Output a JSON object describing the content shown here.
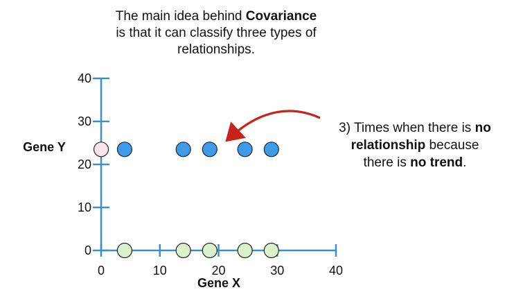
{
  "title": {
    "line1_pre": "The main idea behind ",
    "line1_bold": "Covariance",
    "line2": "is that it can classify three types of",
    "line3": "relationships."
  },
  "annotation": {
    "pre": "3) Times when there is ",
    "bold1": "no",
    "bold2": "relationship",
    "mid": " because",
    "pre2": "there is ",
    "bold3": "no trend",
    "post": "."
  },
  "colors": {
    "axis": "#3f8fc4",
    "series_blue": "#3d9be9",
    "series_green": "#daf1cc",
    "highlight_pink": "#fde3ee",
    "arrow": "#c8221d"
  },
  "chart_data": {
    "type": "scatter",
    "xlabel": "Gene X",
    "ylabel": "Gene Y",
    "xlim": [
      0,
      40
    ],
    "ylim": [
      0,
      40
    ],
    "xticks": [
      "0",
      "10",
      "20",
      "30",
      "40"
    ],
    "yticks": [
      "0",
      "10",
      "20",
      "30",
      "40"
    ],
    "grid": false,
    "series": [
      {
        "points": [
          [
            4,
            23.5
          ],
          [
            14,
            23.5
          ],
          [
            18.5,
            23.5
          ],
          [
            24.5,
            23.5
          ],
          [
            29,
            23.5
          ]
        ],
        "color": "#3d9be9"
      },
      {
        "points": [
          [
            4,
            0
          ],
          [
            14,
            0
          ],
          [
            18.5,
            0
          ],
          [
            24.5,
            0
          ],
          [
            29,
            0
          ]
        ],
        "color": "#daf1cc"
      },
      {
        "points": [
          [
            0,
            23.5
          ]
        ],
        "color": "#fde3ee"
      }
    ]
  }
}
